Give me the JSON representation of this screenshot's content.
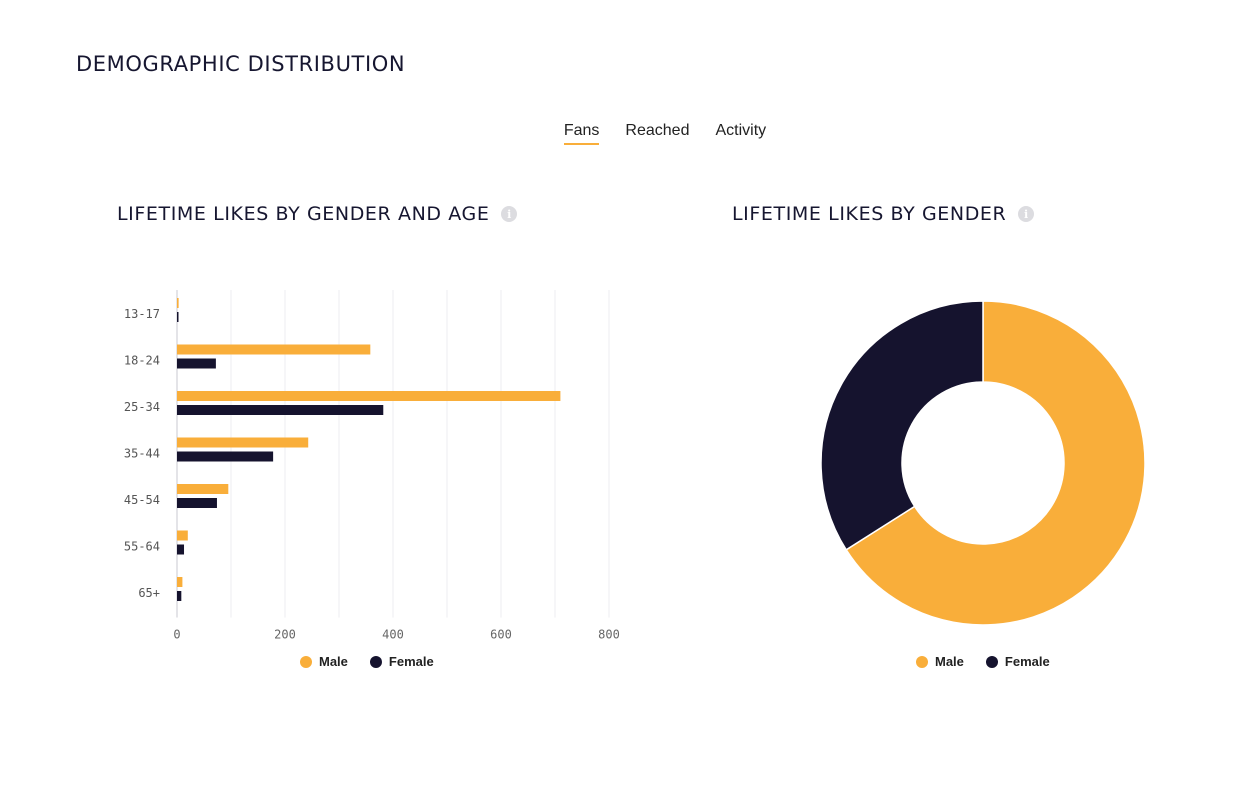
{
  "page": {
    "title": "DEMOGRAPHIC DISTRIBUTION"
  },
  "tabs": [
    {
      "label": "Fans",
      "active": true
    },
    {
      "label": "Reached",
      "active": false
    },
    {
      "label": "Activity",
      "active": false
    }
  ],
  "colors": {
    "male": "#f9ae3a",
    "female": "#15132e",
    "grid": "#ececf0",
    "accent": "#f9ae3a"
  },
  "icons": {
    "info": "info-icon"
  },
  "chart_data": [
    {
      "type": "bar",
      "orientation": "horizontal",
      "title": "LIFETIME LIKES BY GENDER AND AGE",
      "categories": [
        "13-17",
        "18-24",
        "25-34",
        "35-44",
        "45-54",
        "55-64",
        "65+"
      ],
      "series": [
        {
          "name": "Male",
          "values": [
            3,
            358,
            710,
            243,
            95,
            20,
            10
          ]
        },
        {
          "name": "Female",
          "values": [
            1,
            72,
            382,
            178,
            74,
            13,
            8
          ]
        }
      ],
      "xlim": [
        0,
        800
      ],
      "xticks": [
        "0",
        "200",
        "400",
        "600",
        "800"
      ],
      "grid": true,
      "legend": "bottom"
    },
    {
      "type": "pie",
      "donut": true,
      "title": "LIFETIME LIKES BY GENDER",
      "series": [
        {
          "name": "Male",
          "value": 66
        },
        {
          "name": "Female",
          "value": 34
        }
      ],
      "legend": "bottom"
    }
  ],
  "legend": {
    "male_label": "Male",
    "female_label": "Female"
  }
}
